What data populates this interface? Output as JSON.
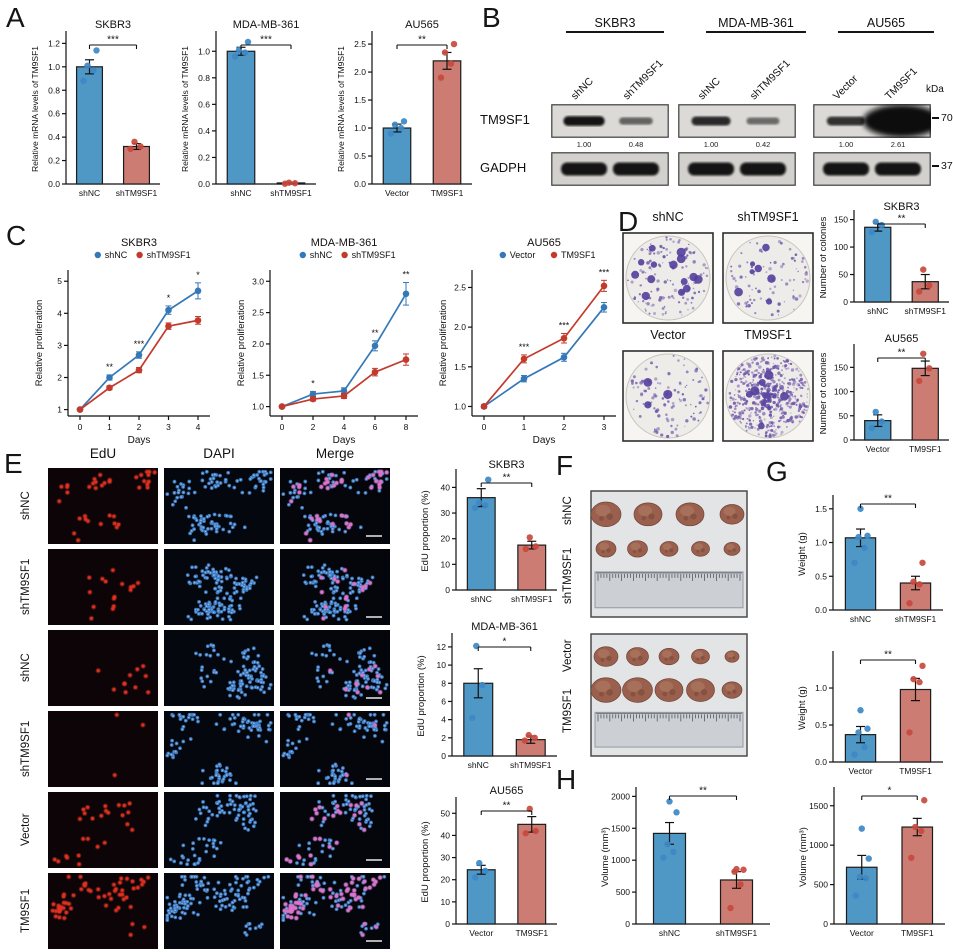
{
  "colors": {
    "blue": "#4f98c6",
    "red": "#cd7c74",
    "blue_dot": "#3d88c6",
    "red_dot": "#c8493d",
    "line_blue": "#3478b8",
    "line_red": "#c23a2b"
  },
  "A": {
    "label": "A",
    "charts": [
      {
        "title": "SKBR3",
        "ylabel": "Relative mRNA levels of TM9SF1",
        "ymax": 1.28,
        "yticks": [
          "0.0",
          "0.2",
          "0.4",
          "0.6",
          "0.8",
          "1.0",
          "1.2"
        ],
        "categories": [
          "shNC",
          "shTM9SF1"
        ],
        "values": [
          1.0,
          0.32
        ],
        "errors": [
          0.06,
          0.025
        ],
        "point_sets": [
          [
            0.88,
            0.97,
            1.01,
            1.14
          ],
          [
            0.3,
            0.32,
            0.36
          ]
        ],
        "bar_colors": [
          "blue",
          "red"
        ],
        "sig": "***"
      },
      {
        "title": "MDA-MB-361",
        "ylabel": "Relative mRNA levels of TM9SF1",
        "ymax": 1.13,
        "yticks": [
          "0.0",
          "0.2",
          "0.4",
          "0.6",
          "0.8",
          "1.0"
        ],
        "categories": [
          "shNC",
          "shTM9SF1"
        ],
        "values": [
          1.0,
          0.008
        ],
        "errors": [
          0.03,
          0.004
        ],
        "point_sets": [
          [
            0.96,
            0.99,
            1.01,
            1.07
          ],
          [
            0.002,
            0.006,
            0.01
          ]
        ],
        "bar_colors": [
          "blue",
          "red"
        ],
        "sig": "***"
      },
      {
        "title": "AU565",
        "ylabel": "Relative mRNA levels of TM9SF1",
        "ymax": 2.68,
        "yticks": [
          "0.0",
          "0.5",
          "1.0",
          "1.5",
          "2.0",
          "2.5"
        ],
        "categories": [
          "Vector",
          "TM9SF1"
        ],
        "values": [
          1.0,
          2.2
        ],
        "errors": [
          0.07,
          0.15
        ],
        "point_sets": [
          [
            0.9,
            1.0,
            1.06,
            1.12
          ],
          [
            1.9,
            2.15,
            2.35,
            2.5
          ]
        ],
        "bar_colors": [
          "blue",
          "red"
        ],
        "sig": "**"
      }
    ]
  },
  "B": {
    "label": "B",
    "kda": "kDa",
    "groups": [
      {
        "name": "SKBR3",
        "lanes": [
          "shNC",
          "shTM9SF1"
        ],
        "values": [
          "1.00",
          "0.48"
        ],
        "tm9sf1_bands": [
          0.95,
          0.4
        ],
        "gadph_bands": [
          1,
          1
        ]
      },
      {
        "name": "MDA-MB-361",
        "lanes": [
          "shNC",
          "shTM9SF1"
        ],
        "values": [
          "1.00",
          "0.42"
        ],
        "tm9sf1_bands": [
          0.8,
          0.35
        ],
        "gadph_bands": [
          1,
          1
        ]
      },
      {
        "name": "AU565",
        "lanes": [
          "Vector",
          "TM9SF1"
        ],
        "values": [
          "1.00",
          "2.61"
        ],
        "tm9sf1_bands": [
          0.75,
          2.6
        ],
        "gadph_bands": [
          1,
          1
        ]
      }
    ],
    "rows": [
      {
        "name": "TM9SF1",
        "marker": "70"
      },
      {
        "name": "GADPH",
        "marker": "37"
      }
    ]
  },
  "C": {
    "label": "C",
    "charts": [
      {
        "title": "SKBR3",
        "ylabel": "Relative proliferation",
        "xlabel": "Days",
        "x": [
          0,
          1,
          2,
          3,
          4
        ],
        "ymin": 0.8,
        "ymax": 5.35,
        "yticks": [
          "1",
          "2",
          "3",
          "4",
          "5"
        ],
        "series": [
          {
            "name": "shNC",
            "color": "blue",
            "values": [
              1,
              2.0,
              2.7,
              4.1,
              4.7
            ],
            "errors": [
              0.03,
              0.08,
              0.1,
              0.13,
              0.25
            ]
          },
          {
            "name": "shTM9SF1",
            "color": "red",
            "values": [
              1,
              1.68,
              2.23,
              3.6,
              3.78
            ],
            "errors": [
              0.03,
              0.06,
              0.08,
              0.1,
              0.12
            ]
          }
        ],
        "sig": [
          "",
          "**",
          "***",
          "*",
          "*"
        ]
      },
      {
        "title": "MDA-MB-361",
        "ylabel": "Relative proliferation",
        "xlabel": "Days",
        "x": [
          0,
          2,
          4,
          6,
          8
        ],
        "ymin": 0.85,
        "ymax": 3.18,
        "yticks": [
          "1.0",
          "1.5",
          "2.0",
          "2.5",
          "3.0"
        ],
        "series": [
          {
            "name": "shNC",
            "color": "blue",
            "values": [
              1.0,
              1.2,
              1.25,
              1.97,
              2.8
            ],
            "errors": [
              0.02,
              0.04,
              0.05,
              0.08,
              0.18
            ]
          },
          {
            "name": "shTM9SF1",
            "color": "red",
            "values": [
              1.0,
              1.12,
              1.17,
              1.55,
              1.75
            ],
            "errors": [
              0.02,
              0.03,
              0.04,
              0.06,
              0.09
            ]
          }
        ],
        "sig": [
          "",
          "*",
          "",
          "**",
          "**"
        ]
      },
      {
        "title": "AU565",
        "ylabel": "Relative proliferation",
        "xlabel": "Days",
        "x": [
          0,
          1,
          2,
          3
        ],
        "ymin": 0.88,
        "ymax": 2.72,
        "yticks": [
          "1.0",
          "1.5",
          "2.0",
          "2.5"
        ],
        "series": [
          {
            "name": "Vector",
            "color": "blue",
            "values": [
              1.0,
              1.35,
              1.62,
              2.25
            ],
            "errors": [
              0.02,
              0.04,
              0.05,
              0.06
            ]
          },
          {
            "name": "TM9SF1",
            "color": "red",
            "values": [
              1.0,
              1.6,
              1.86,
              2.52
            ],
            "errors": [
              0.02,
              0.05,
              0.06,
              0.07
            ]
          }
        ],
        "sig": [
          "",
          "***",
          "***",
          "***"
        ]
      }
    ]
  },
  "D": {
    "label": "D",
    "dishes": [
      {
        "label": "shNC",
        "small": 130,
        "large": 14
      },
      {
        "label": "shTM9SF1",
        "small": 85,
        "large": 7
      },
      {
        "label": "Vector",
        "small": 105,
        "large": 3
      },
      {
        "label": "TM9SF1",
        "small": 430,
        "large": 6,
        "center_cluster": 70
      }
    ],
    "charts": [
      {
        "title": "SKBR3",
        "ylabel": "Number of colonies",
        "ymax": 162,
        "yticks": [
          "0",
          "50",
          "100",
          "150"
        ],
        "categories": [
          "shNC",
          "shTM9SF1"
        ],
        "values": [
          136,
          37
        ],
        "errors": [
          7,
          13
        ],
        "point_sets": [
          [
            127,
            140,
            146
          ],
          [
            19,
            30,
            59
          ]
        ],
        "bar_colors": [
          "blue",
          "red"
        ],
        "sig": "**"
      },
      {
        "title": "AU565",
        "ylabel": "Number of colonies",
        "ymax": 192,
        "yticks": [
          "0",
          "50",
          "100",
          "150"
        ],
        "categories": [
          "Vector",
          "TM9SF1"
        ],
        "values": [
          40,
          148
        ],
        "errors": [
          12,
          15
        ],
        "point_sets": [
          [
            25,
            38,
            58
          ],
          [
            122,
            148,
            178
          ]
        ],
        "bar_colors": [
          "blue",
          "red"
        ],
        "sig": "**"
      }
    ]
  },
  "E": {
    "label": "E",
    "columns": [
      "EdU",
      "DAPI",
      "Merge"
    ],
    "rows": [
      {
        "label": "shNC",
        "edu": 38,
        "cells": 120
      },
      {
        "label": "shTM9SF1",
        "edu": 16,
        "cells": 150
      },
      {
        "label": "shNC",
        "edu": 11,
        "cells": 100
      },
      {
        "label": "shTM9SF1",
        "edu": 3,
        "cells": 115
      },
      {
        "label": "Vector",
        "edu": 26,
        "cells": 95
      },
      {
        "label": "TM9SF1",
        "edu": 60,
        "cells": 135
      }
    ],
    "charts": [
      {
        "title": "SKBR3",
        "ylabel": "EdU proportion (%)",
        "ymax": 46,
        "yticks": [
          "0",
          "10",
          "20",
          "30",
          "40"
        ],
        "categories": [
          "shNC",
          "shTM9SF1"
        ],
        "values": [
          36,
          17.5
        ],
        "errors": [
          3.5,
          1.5
        ],
        "point_sets": [
          [
            32,
            33,
            34,
            43
          ],
          [
            16,
            17,
            20.5
          ]
        ],
        "bar_colors": [
          "blue",
          "red"
        ],
        "sig": "**"
      },
      {
        "title": "MDA-MB-361",
        "ylabel": "EdU proportion (%)",
        "ymax": 13.2,
        "yticks": [
          "0",
          "2",
          "4",
          "6",
          "8",
          "10",
          "12"
        ],
        "categories": [
          "shNC",
          "shTM9SF1"
        ],
        "values": [
          8,
          1.8
        ],
        "errors": [
          1.6,
          0.4
        ],
        "point_sets": [
          [
            4.2,
            7.8,
            12.1
          ],
          [
            1.7,
            2.0,
            2.3
          ]
        ],
        "bar_colors": [
          "blue",
          "red"
        ],
        "sig": "*"
      },
      {
        "title": "AU565",
        "ylabel": "EdU proportion (%)",
        "ymax": 56,
        "yticks": [
          "0",
          "10",
          "20",
          "30",
          "40",
          "50"
        ],
        "categories": [
          "Vector",
          "TM9SF1"
        ],
        "values": [
          24.5,
          45
        ],
        "errors": [
          2,
          3.5
        ],
        "point_sets": [
          [
            21,
            24,
            27.5
          ],
          [
            41,
            42,
            52
          ]
        ],
        "bar_colors": [
          "blue",
          "red"
        ],
        "sig": "**"
      }
    ]
  },
  "F": {
    "label": "F",
    "photos": [
      {
        "row_labels": [
          "shNC",
          "shTM9SF1"
        ],
        "tumors": [
          [
            15,
            14,
            14,
            12
          ],
          [
            10,
            10,
            9,
            9,
            8
          ]
        ]
      },
      {
        "row_labels": [
          "Vector",
          "TM9SF1"
        ],
        "tumors": [
          [
            12,
            11,
            10,
            9,
            7
          ],
          [
            15,
            15,
            14,
            14,
            10
          ]
        ]
      }
    ]
  },
  "G": {
    "label": "G",
    "charts": [
      {
        "ylabel": "Weight (g)",
        "ymax": 1.66,
        "yticks": [
          "0.0",
          "0.5",
          "1.0",
          "1.5"
        ],
        "categories": [
          "shNC",
          "shTM9SF1"
        ],
        "values": [
          1.07,
          0.4
        ],
        "errors": [
          0.13,
          0.1
        ],
        "point_sets": [
          [
            0.7,
            0.92,
            1.08,
            1.1,
            1.5
          ],
          [
            0.1,
            0.38,
            0.42,
            0.7
          ]
        ],
        "bar_colors": [
          "blue",
          "red"
        ],
        "sig": "**"
      },
      {
        "ylabel": "Weight (g)",
        "ymax": 1.46,
        "yticks": [
          "0.0",
          "0.5",
          "1.0"
        ],
        "categories": [
          "Vector",
          "TM9SF1"
        ],
        "values": [
          0.37,
          0.98
        ],
        "errors": [
          0.11,
          0.15
        ],
        "point_sets": [
          [
            0.1,
            0.2,
            0.4,
            0.45,
            0.7
          ],
          [
            0.4,
            1.08,
            1.12,
            1.3
          ]
        ],
        "bar_colors": [
          "blue",
          "red"
        ],
        "sig": "**"
      }
    ]
  },
  "H": {
    "label": "H",
    "charts": [
      {
        "ylabel": "Volume (mm³)",
        "ymax": 2100,
        "yticks": [
          "0",
          "500",
          "1000",
          "1500",
          "2000"
        ],
        "categories": [
          "shNC",
          "shTM9SF1"
        ],
        "values": [
          1420,
          690
        ],
        "errors": [
          170,
          130
        ],
        "point_sets": [
          [
            1040,
            1130,
            1250,
            1750,
            1920
          ],
          [
            250,
            620,
            820,
            850,
            860
          ]
        ],
        "bar_colors": [
          "blue",
          "red"
        ],
        "sig": "**"
      },
      {
        "ylabel": "Volume (mm³)",
        "ymax": 1700,
        "yticks": [
          "0",
          "500",
          "1000",
          "1500"
        ],
        "categories": [
          "Vector",
          "TM9SF1"
        ],
        "values": [
          720,
          1230
        ],
        "errors": [
          150,
          110
        ],
        "point_sets": [
          [
            360,
            580,
            600,
            830,
            1210
          ],
          [
            840,
            1180,
            1230,
            1570
          ]
        ],
        "bar_colors": [
          "blue",
          "red"
        ],
        "sig": "*"
      }
    ]
  }
}
